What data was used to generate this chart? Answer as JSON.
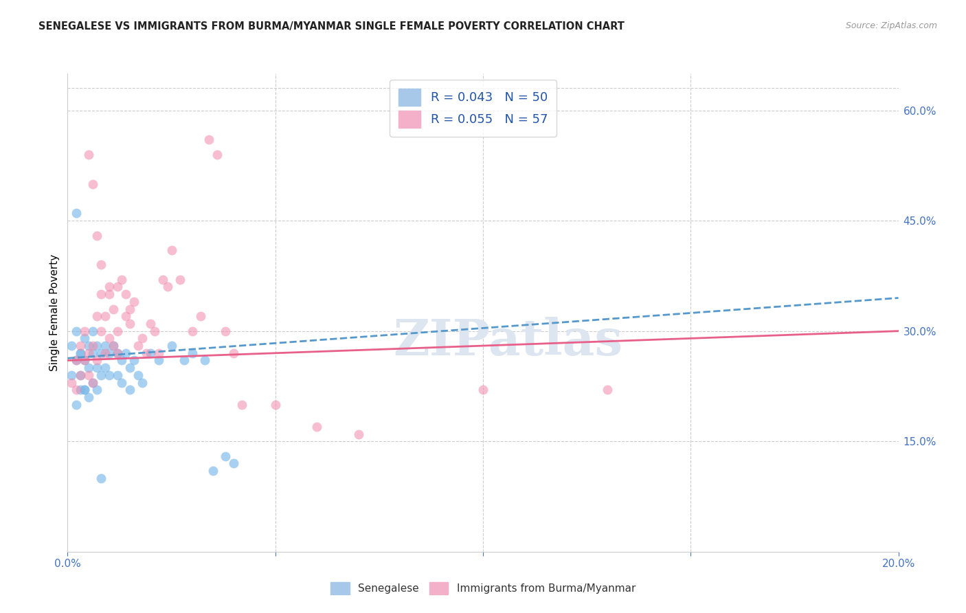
{
  "title": "SENEGALESE VS IMMIGRANTS FROM BURMA/MYANMAR SINGLE FEMALE POVERTY CORRELATION CHART",
  "source": "Source: ZipAtlas.com",
  "ylabel": "Single Female Poverty",
  "xmin": 0.0,
  "xmax": 0.2,
  "ymin": 0.0,
  "ymax": 0.65,
  "ytick_vals_right": [
    0.15,
    0.3,
    0.45,
    0.6
  ],
  "ytick_labels_right": [
    "15.0%",
    "30.0%",
    "45.0%",
    "60.0%"
  ],
  "legend1_label": "R = 0.043   N = 50",
  "legend2_label": "R = 0.055   N = 57",
  "scatter_color1": "#7ab8e8",
  "scatter_color2": "#f08aaa",
  "trend_color_blue": "#5599cc",
  "trend_color_pink": "#e8608a",
  "watermark": "ZIPatlas",
  "watermark_color": "#dde5f0",
  "background_color": "#ffffff",
  "grid_color": "#cccccc",
  "blue_points_x": [
    0.001,
    0.001,
    0.002,
    0.002,
    0.002,
    0.003,
    0.003,
    0.003,
    0.004,
    0.004,
    0.004,
    0.005,
    0.005,
    0.005,
    0.006,
    0.006,
    0.006,
    0.007,
    0.007,
    0.007,
    0.008,
    0.008,
    0.009,
    0.009,
    0.01,
    0.01,
    0.011,
    0.012,
    0.012,
    0.013,
    0.013,
    0.014,
    0.015,
    0.015,
    0.016,
    0.017,
    0.018,
    0.02,
    0.022,
    0.025,
    0.028,
    0.03,
    0.033,
    0.035,
    0.038,
    0.04,
    0.002,
    0.003,
    0.004,
    0.008
  ],
  "blue_points_y": [
    0.28,
    0.24,
    0.3,
    0.26,
    0.2,
    0.27,
    0.24,
    0.22,
    0.29,
    0.26,
    0.22,
    0.28,
    0.25,
    0.21,
    0.3,
    0.27,
    0.23,
    0.28,
    0.25,
    0.22,
    0.27,
    0.24,
    0.28,
    0.25,
    0.27,
    0.24,
    0.28,
    0.27,
    0.24,
    0.26,
    0.23,
    0.27,
    0.25,
    0.22,
    0.26,
    0.24,
    0.23,
    0.27,
    0.26,
    0.28,
    0.26,
    0.27,
    0.26,
    0.11,
    0.13,
    0.12,
    0.46,
    0.27,
    0.22,
    0.1
  ],
  "pink_points_x": [
    0.001,
    0.002,
    0.002,
    0.003,
    0.003,
    0.004,
    0.004,
    0.005,
    0.005,
    0.006,
    0.006,
    0.007,
    0.007,
    0.008,
    0.008,
    0.009,
    0.009,
    0.01,
    0.01,
    0.011,
    0.011,
    0.012,
    0.012,
    0.013,
    0.014,
    0.014,
    0.015,
    0.016,
    0.017,
    0.018,
    0.019,
    0.02,
    0.021,
    0.022,
    0.023,
    0.024,
    0.025,
    0.027,
    0.03,
    0.032,
    0.034,
    0.036,
    0.038,
    0.04,
    0.042,
    0.05,
    0.06,
    0.07,
    0.1,
    0.13,
    0.005,
    0.006,
    0.007,
    0.008,
    0.01,
    0.012,
    0.015
  ],
  "pink_points_y": [
    0.23,
    0.26,
    0.22,
    0.28,
    0.24,
    0.26,
    0.3,
    0.24,
    0.27,
    0.23,
    0.28,
    0.32,
    0.26,
    0.3,
    0.35,
    0.27,
    0.32,
    0.36,
    0.29,
    0.28,
    0.33,
    0.3,
    0.27,
    0.37,
    0.35,
    0.32,
    0.31,
    0.34,
    0.28,
    0.29,
    0.27,
    0.31,
    0.3,
    0.27,
    0.37,
    0.36,
    0.41,
    0.37,
    0.3,
    0.32,
    0.56,
    0.54,
    0.3,
    0.27,
    0.2,
    0.2,
    0.17,
    0.16,
    0.22,
    0.22,
    0.54,
    0.5,
    0.43,
    0.39,
    0.35,
    0.36,
    0.33
  ],
  "blue_trend_x": [
    0.0,
    0.2
  ],
  "blue_trend_y": [
    0.263,
    0.345
  ],
  "pink_trend_x": [
    0.0,
    0.2
  ],
  "pink_trend_y": [
    0.26,
    0.3
  ]
}
